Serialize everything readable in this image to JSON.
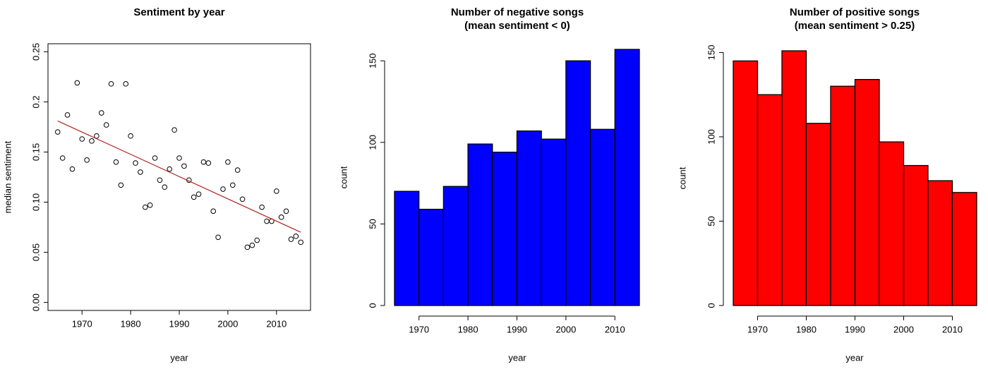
{
  "chart_data": [
    {
      "type": "scatter",
      "title": "Sentiment by year",
      "x_label": "year",
      "y_label": "median sentiment",
      "x": [
        1965,
        1966,
        1967,
        1968,
        1969,
        1970,
        1971,
        1972,
        1973,
        1974,
        1975,
        1976,
        1977,
        1978,
        1979,
        1980,
        1981,
        1982,
        1983,
        1984,
        1985,
        1986,
        1987,
        1988,
        1989,
        1990,
        1991,
        1992,
        1993,
        1994,
        1995,
        1996,
        1997,
        1998,
        1999,
        2000,
        2001,
        2002,
        2003,
        2004,
        2005,
        2006,
        2007,
        2008,
        2009,
        2010,
        2011,
        2012,
        2013,
        2014,
        2015
      ],
      "values": [
        0.17,
        0.144,
        0.187,
        0.133,
        0.219,
        0.163,
        0.142,
        0.161,
        0.166,
        0.189,
        0.177,
        0.218,
        0.14,
        0.117,
        0.218,
        0.166,
        0.139,
        0.13,
        0.095,
        0.097,
        0.144,
        0.122,
        0.115,
        0.133,
        0.172,
        0.144,
        0.136,
        0.122,
        0.105,
        0.108,
        0.14,
        0.139,
        0.091,
        0.065,
        0.113,
        0.14,
        0.117,
        0.132,
        0.103,
        0.055,
        0.057,
        0.062,
        0.095,
        0.081,
        0.081,
        0.111,
        0.085,
        0.091,
        0.063,
        0.066,
        0.06
      ],
      "color": "#000000",
      "trend": {
        "x": [
          1965,
          2015
        ],
        "values": [
          0.181,
          0.07
        ],
        "color": "#b22222"
      },
      "xlim": [
        1963,
        2017
      ],
      "xticks": [
        1970,
        1980,
        1990,
        2000,
        2010
      ],
      "ylim": [
        -0.008,
        0.258
      ],
      "yticks": [
        {
          "value": 0,
          "label": "0.00"
        },
        0.05,
        {
          "value": 0.1,
          "label": "0.10"
        },
        0.15,
        0.2,
        0.25
      ]
    },
    {
      "type": "histogram",
      "title": "Number of negative songs",
      "subtitle": "(mean sentiment < 0)",
      "x_label": "year",
      "y_label": "count",
      "bins": [
        1965,
        1970,
        1975,
        1980,
        1985,
        1990,
        1995,
        2000,
        2005,
        2010,
        2015
      ],
      "values": [
        70,
        59,
        73,
        99,
        94,
        107,
        102,
        150,
        108,
        157
      ],
      "color": "#0000ff",
      "xlim": [
        1965,
        2015
      ],
      "xticks": [
        1970,
        1980,
        1990,
        2000,
        2010
      ],
      "ylim": [
        0,
        157
      ],
      "yticks": [
        0,
        50,
        100,
        150
      ]
    },
    {
      "type": "histogram",
      "title": "Number of positive songs",
      "subtitle": "(mean sentiment > 0.25)",
      "x_label": "year",
      "y_label": "count",
      "bins": [
        1965,
        1970,
        1975,
        1980,
        1985,
        1990,
        1995,
        2000,
        2005,
        2010,
        2015
      ],
      "values": [
        145,
        125,
        151,
        108,
        130,
        134,
        97,
        83,
        74,
        67
      ],
      "color": "#ff0000",
      "xlim": [
        1965,
        2015
      ],
      "xticks": [
        1970,
        1980,
        1990,
        2000,
        2010
      ],
      "ylim": [
        0,
        151
      ],
      "yticks": [
        0,
        50,
        100,
        150
      ]
    }
  ]
}
